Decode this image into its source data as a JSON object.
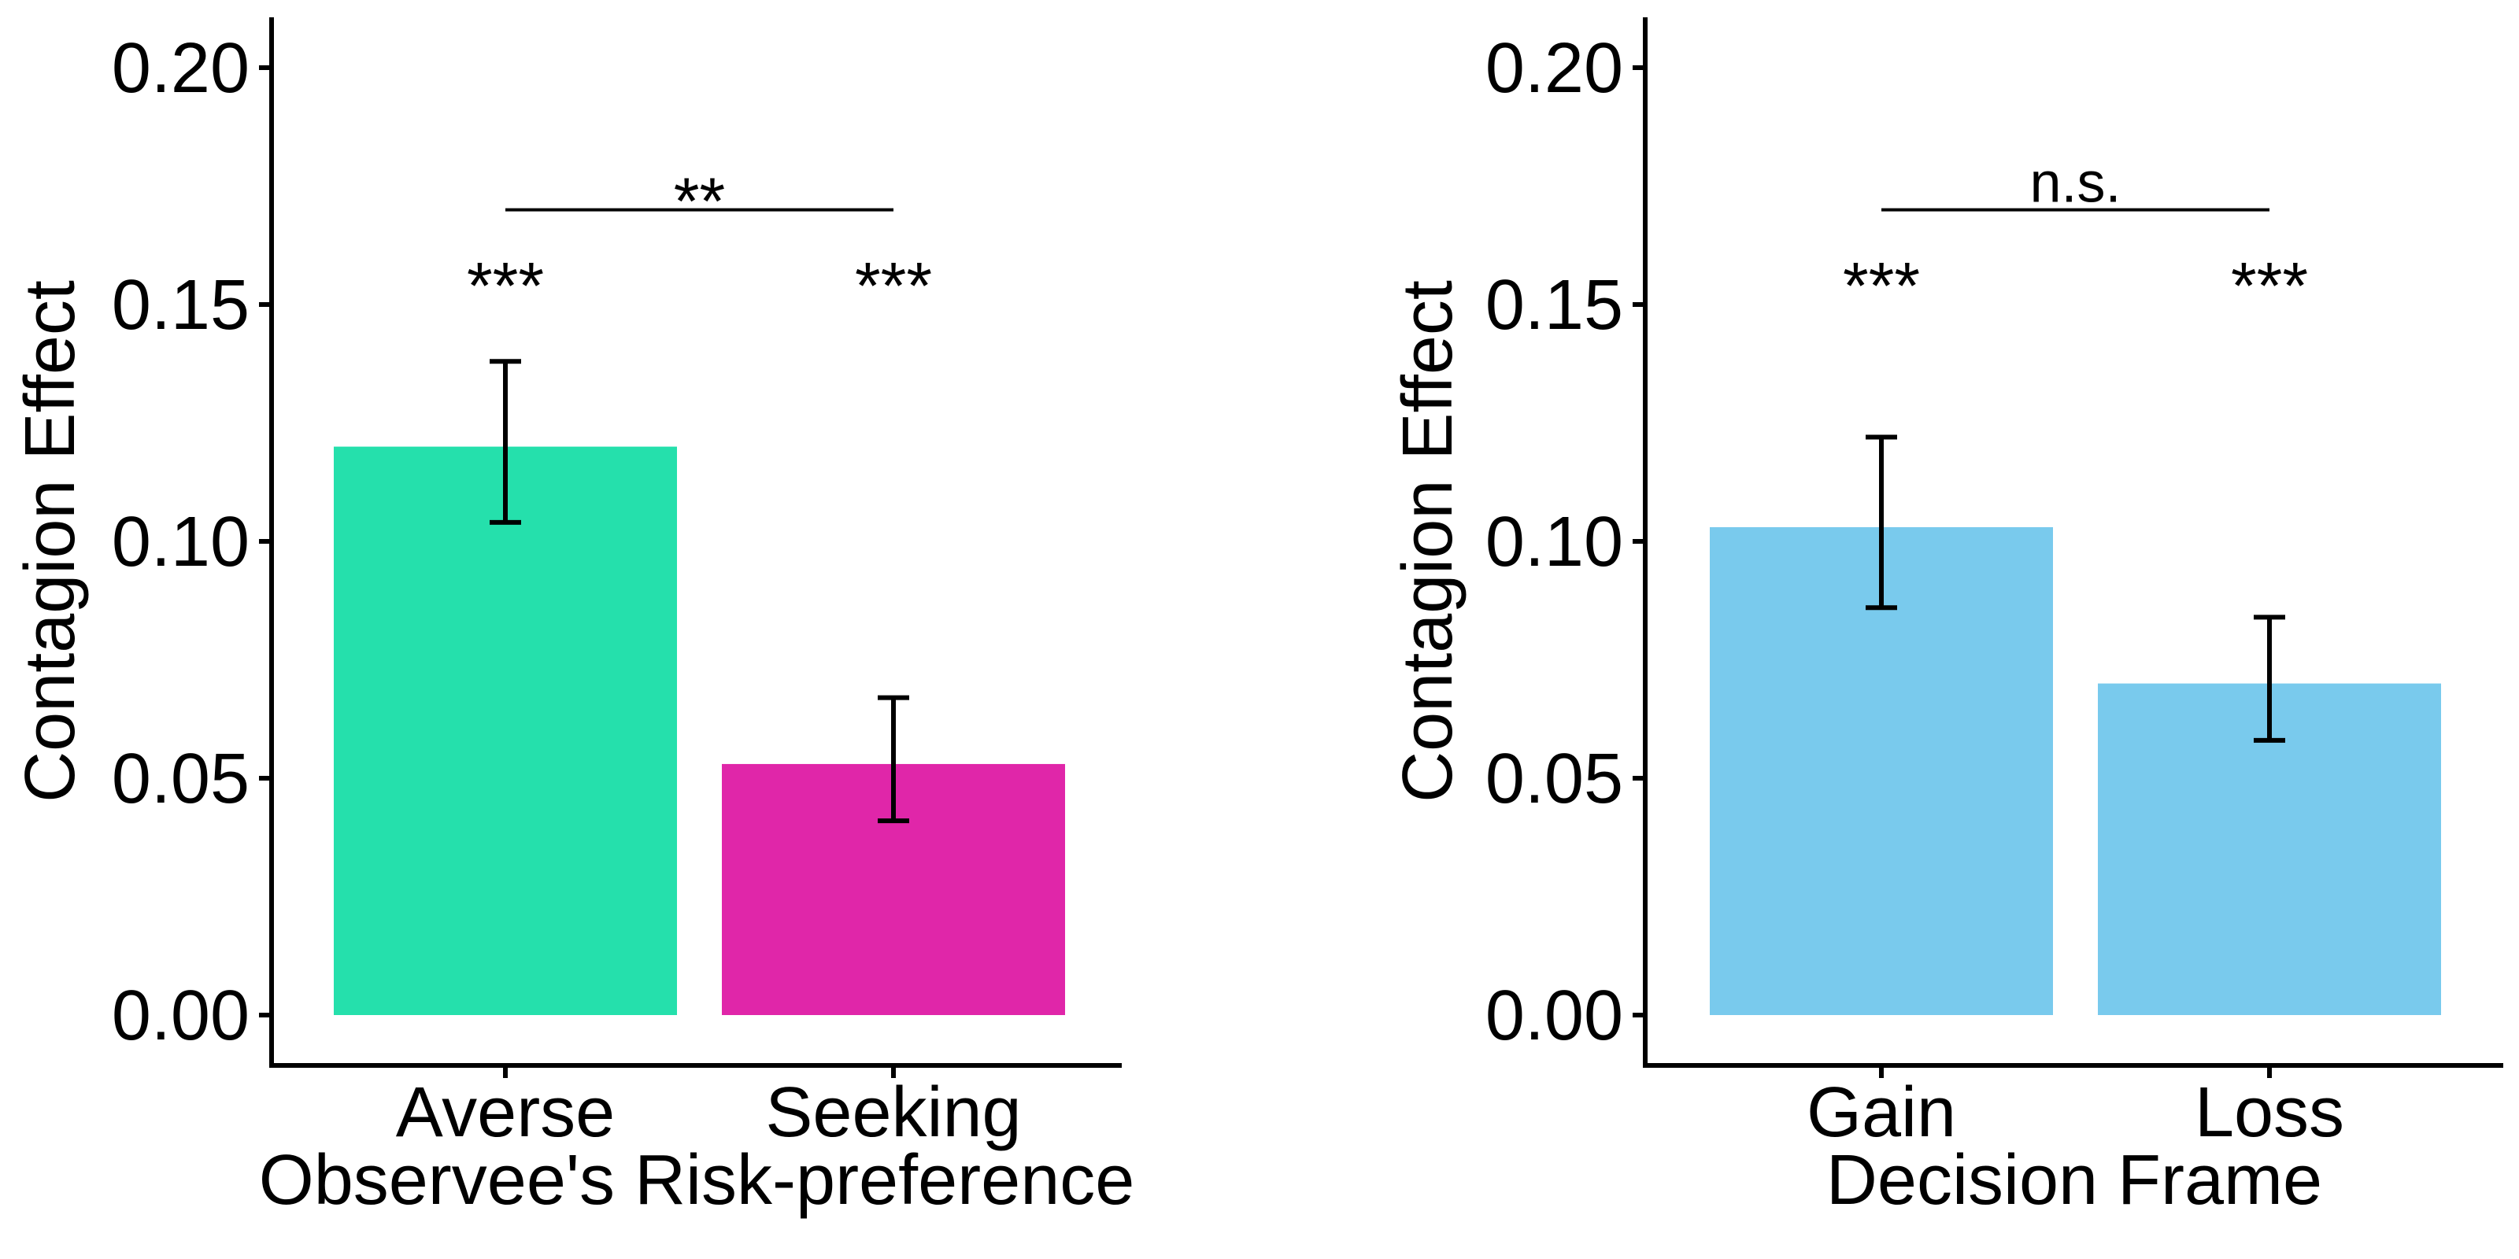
{
  "chart_data": [
    {
      "type": "bar",
      "categories": [
        "Averse",
        "Seeking"
      ],
      "values": [
        0.12,
        0.053
      ],
      "error_low": [
        0.104,
        0.041
      ],
      "error_high": [
        0.138,
        0.067
      ],
      "colors": [
        "#25E0AC",
        "#E026A9"
      ],
      "xlabel": "Observee's Risk-preference",
      "ylabel": "Contagion Effect",
      "ylim": [
        0,
        0.21
      ],
      "yticks": [
        "0.00",
        "0.05",
        "0.10",
        "0.15",
        "0.20"
      ],
      "bar_annotations": [
        "***",
        "***"
      ],
      "comparison": {
        "from": "Averse",
        "to": "Seeking",
        "label": "**",
        "y": 0.17
      },
      "grid": false
    },
    {
      "type": "bar",
      "categories": [
        "Gain",
        "Loss"
      ],
      "values": [
        0.103,
        0.07
      ],
      "error_low": [
        0.086,
        0.058
      ],
      "error_high": [
        0.122,
        0.084
      ],
      "colors": [
        "#79CAED",
        "#79CAED"
      ],
      "xlabel": "Decision Frame",
      "ylabel": "Contagion Effect",
      "ylim": [
        0,
        0.21
      ],
      "yticks": [
        "0.00",
        "0.05",
        "0.10",
        "0.15",
        "0.20"
      ],
      "bar_annotations": [
        "***",
        "***"
      ],
      "comparison": {
        "from": "Gain",
        "to": "Loss",
        "label": "n.s.",
        "y": 0.17
      },
      "grid": false
    }
  ]
}
